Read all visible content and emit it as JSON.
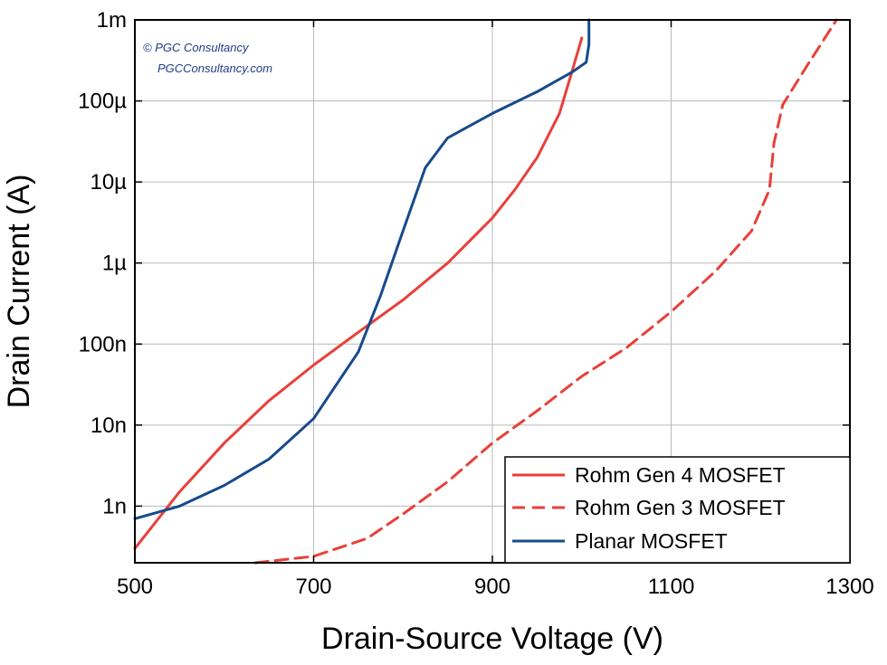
{
  "chart_data": {
    "type": "line",
    "title": "",
    "xlabel": "Drain-Source Voltage (V)",
    "ylabel": "Drain Current (A)",
    "xlim": [
      500,
      1300
    ],
    "ylim": [
      2e-10,
      0.001
    ],
    "yscale": "log",
    "grid": true,
    "x_ticks": [
      {
        "value": 500,
        "label": "500"
      },
      {
        "value": 700,
        "label": "700"
      },
      {
        "value": 900,
        "label": "900"
      },
      {
        "value": 1100,
        "label": "1100"
      },
      {
        "value": 1300,
        "label": "1300"
      }
    ],
    "y_ticks": [
      {
        "value": 1e-09,
        "label": "1n"
      },
      {
        "value": 1e-08,
        "label": "10n"
      },
      {
        "value": 1e-07,
        "label": "100n"
      },
      {
        "value": 1e-06,
        "label": "1µ"
      },
      {
        "value": 1e-05,
        "label": "10µ"
      },
      {
        "value": 0.0001,
        "label": "100µ"
      },
      {
        "value": 0.001,
        "label": "1m"
      }
    ],
    "legend_position": "bottom-right",
    "series": [
      {
        "name": "Rohm Gen 4 MOSFET",
        "color": "#e8403a",
        "style": "solid",
        "points": [
          [
            500,
            3e-10
          ],
          [
            550,
            1.5e-09
          ],
          [
            600,
            6e-09
          ],
          [
            650,
            2e-08
          ],
          [
            700,
            5.5e-08
          ],
          [
            750,
            1.4e-07
          ],
          [
            800,
            3.5e-07
          ],
          [
            850,
            1e-06
          ],
          [
            900,
            3.6e-06
          ],
          [
            925,
            8e-06
          ],
          [
            950,
            2e-05
          ],
          [
            975,
            7e-05
          ],
          [
            990,
            0.00025
          ],
          [
            1000,
            0.0006
          ]
        ]
      },
      {
        "name": "Rohm Gen 3 MOSFET",
        "color": "#e8403a",
        "style": "dashed",
        "points": [
          [
            635,
            2e-10
          ],
          [
            700,
            2.4e-10
          ],
          [
            760,
            4e-10
          ],
          [
            800,
            8e-10
          ],
          [
            850,
            2e-09
          ],
          [
            900,
            6e-09
          ],
          [
            950,
            1.5e-08
          ],
          [
            1000,
            4e-08
          ],
          [
            1050,
            9e-08
          ],
          [
            1100,
            2.5e-07
          ],
          [
            1150,
            8e-07
          ],
          [
            1190,
            2.5e-06
          ],
          [
            1210,
            8e-06
          ],
          [
            1215,
            3e-05
          ],
          [
            1225,
            9e-05
          ],
          [
            1250,
            0.00025
          ],
          [
            1285,
            0.001
          ]
        ]
      },
      {
        "name": "Planar MOSFET",
        "color": "#174a8c",
        "style": "solid",
        "points": [
          [
            500,
            7e-10
          ],
          [
            550,
            1e-09
          ],
          [
            600,
            1.8e-09
          ],
          [
            650,
            3.8e-09
          ],
          [
            700,
            1.2e-08
          ],
          [
            750,
            8e-08
          ],
          [
            775,
            4e-07
          ],
          [
            800,
            2.5e-06
          ],
          [
            825,
            1.5e-05
          ],
          [
            850,
            3.5e-05
          ],
          [
            900,
            7e-05
          ],
          [
            950,
            0.00013
          ],
          [
            990,
            0.00023
          ],
          [
            1005,
            0.0003
          ],
          [
            1008,
            0.0005
          ],
          [
            1008,
            0.001
          ]
        ]
      }
    ]
  },
  "watermark": {
    "line1": "© PGC Consultancy",
    "line2": "PGCConsultancy.com"
  }
}
